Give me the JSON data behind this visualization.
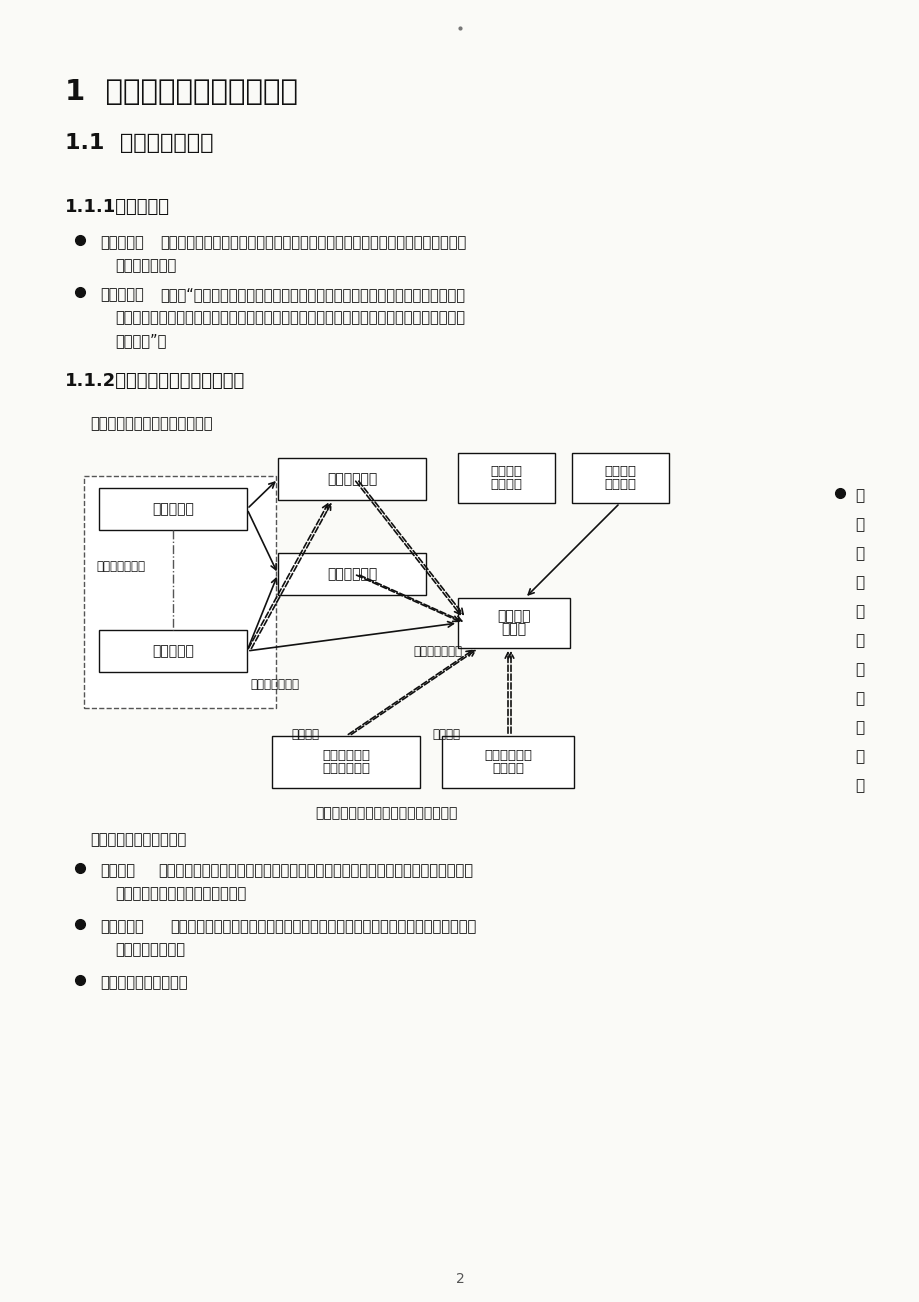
{
  "bg_color": "#fafaf7",
  "page_title": "1  档案管理的根底理念介绍",
  "section_1_1": "1.1  档案与档案行业",
  "section_1_1_1": "1.1.1档案的概念",
  "bullet1_label": "微观概念：",
  "bullet1_line1": "档案是一个立档单位为适应职能活动需要而直接产生的依法归档的具有保存价值",
  "bullet1_line2": "的文件与材料。",
  "bullet2_label": "宏观概念：",
  "bullet2_line1": "档案是“过去和现在的机构、社会组织以及个人从事政治、军事、经济、科学、",
  "bullet2_line2": "技术、文化、等活动直接形成的对和社会有保存价值的各种文字、图表、声像等不同形式的",
  "bullet2_line3": "历史记录”。",
  "section_1_1_2": "1.1.2与档案相关单位及组织构造",
  "diagram_intro": "与档案相关的单位关系图如下：",
  "diagram_caption": "（图）档案相关单位及组织构造关系图",
  "box_guojia": "国家档案局",
  "box_difang": "地方档案局",
  "box_zonghe": "综合性档案馆",
  "box_zhuanye": "专业性档案馆",
  "box_lida_qita": [
    "立档单位",
    "其它部门"
  ],
  "box_lida_shangji": [
    "立档单位",
    "上级单位"
  ],
  "box_lida_dangan": [
    "立档单位",
    "档案室"
  ],
  "box_it_hardware": [
    "档案信息技术",
    "硬件类供应商"
  ],
  "box_it_software": [
    "档案信息软件",
    "类供应商"
  ],
  "label_jianjie": "间接的行政管理",
  "label_zhijie": "直接的行政管理",
  "label_yewu": "业务监视和指导",
  "label_chanpin1": "产品供应",
  "label_chanpin2": "产品供应",
  "sidebar_chars": [
    "档",
    "案",
    "局",
    "：",
    "档",
    "案",
    "业",
    "务",
    "监",
    "视",
    "和"
  ],
  "lower_intro": "指导部门，属行政单位。",
  "bullet3_label": "档案馆：",
  "bullet3_line1": "集中存放社会上各单位的档案的单位，负责档案的收集和保管，属事业单位。包括",
  "bullet3_line2": "档案馆、地档案馆、专业档案馆。",
  "bullet4_label": "立档单位：",
  "bullet4_line1": "产生档案的单位，一般都有档案集中保管的部门，大局部称为档案室，有的也称",
  "bullet4_line2": "为室或其它名称。",
  "bullet5_label": "各单位之间存在关系：",
  "page_number": "2",
  "text_color": "#111111"
}
